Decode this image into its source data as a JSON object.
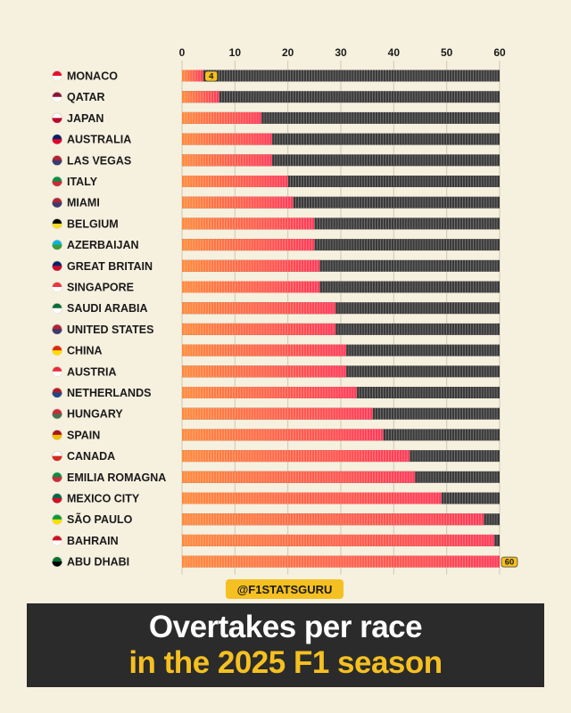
{
  "handle": "@F1STATSGURU",
  "title": {
    "line1": "Overtakes per race",
    "line2": "in the 2025 F1 season"
  },
  "colors": {
    "background": "#f6f0df",
    "bar_gradient_start": "#ff8a3d",
    "bar_gradient_end": "#ff3b58",
    "bar_remainder": "#3a3a3a",
    "accent_yellow": "#f5c021",
    "title_box": "#2b2b2b"
  },
  "chart_data": {
    "type": "bar",
    "orientation": "horizontal",
    "title": "Overtakes per race in the 2025 F1 season",
    "xlim": [
      0,
      60
    ],
    "x_ticks": [
      "0",
      "10",
      "20",
      "30",
      "40",
      "50",
      "60"
    ],
    "grid": true,
    "highlighted_value_labels": [
      {
        "category": "MONACO",
        "label": "4"
      },
      {
        "category": "ABU DHABI",
        "label": "60"
      }
    ],
    "categories": [
      {
        "name": "MONACO",
        "flag": "monaco-flag-icon",
        "value": 4
      },
      {
        "name": "QATAR",
        "flag": "qatar-flag-icon",
        "value": 7
      },
      {
        "name": "JAPAN",
        "flag": "japan-flag-icon",
        "value": 15
      },
      {
        "name": "AUSTRALIA",
        "flag": "australia-flag-icon",
        "value": 17
      },
      {
        "name": "LAS VEGAS",
        "flag": "usa-flag-icon",
        "value": 17
      },
      {
        "name": "ITALY",
        "flag": "italy-flag-icon",
        "value": 20
      },
      {
        "name": "MIAMI",
        "flag": "usa-flag-icon",
        "value": 21
      },
      {
        "name": "BELGIUM",
        "flag": "belgium-flag-icon",
        "value": 25
      },
      {
        "name": "AZERBAIJAN",
        "flag": "azerbaijan-flag-icon",
        "value": 25
      },
      {
        "name": "GREAT BRITAIN",
        "flag": "uk-flag-icon",
        "value": 26
      },
      {
        "name": "SINGAPORE",
        "flag": "singapore-flag-icon",
        "value": 26
      },
      {
        "name": "SAUDI ARABIA",
        "flag": "saudi-arabia-flag-icon",
        "value": 29
      },
      {
        "name": "UNITED STATES",
        "flag": "usa-flag-icon",
        "value": 29
      },
      {
        "name": "CHINA",
        "flag": "china-flag-icon",
        "value": 31
      },
      {
        "name": "AUSTRIA",
        "flag": "austria-flag-icon",
        "value": 31
      },
      {
        "name": "NETHERLANDS",
        "flag": "netherlands-flag-icon",
        "value": 33
      },
      {
        "name": "HUNGARY",
        "flag": "hungary-flag-icon",
        "value": 36
      },
      {
        "name": "SPAIN",
        "flag": "spain-flag-icon",
        "value": 38
      },
      {
        "name": "CANADA",
        "flag": "canada-flag-icon",
        "value": 43
      },
      {
        "name": "EMILIA ROMAGNA",
        "flag": "italy-flag-icon",
        "value": 44
      },
      {
        "name": "MEXICO CITY",
        "flag": "mexico-flag-icon",
        "value": 49
      },
      {
        "name": "SÃO PAULO",
        "flag": "brazil-flag-icon",
        "value": 57
      },
      {
        "name": "BAHRAIN",
        "flag": "bahrain-flag-icon",
        "value": 59
      },
      {
        "name": "ABU DHABI",
        "flag": "uae-flag-icon",
        "value": 60
      }
    ]
  }
}
